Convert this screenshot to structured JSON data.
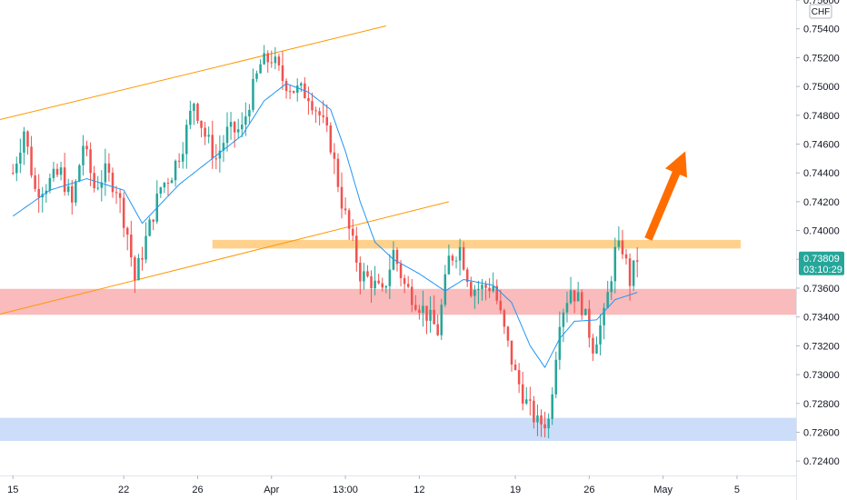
{
  "currency_label": "CHF",
  "price_badge": {
    "price": "0.73809",
    "countdown": "03:10:29",
    "color": "#26a69a"
  },
  "colors": {
    "bull": "#26a69a",
    "bear": "#ef5350",
    "ma": "#2196f3",
    "channel": "#ff9800",
    "resistance_zone": "#ffcc80",
    "support_zone_red": "#f8b4b4",
    "support_zone_blue": "#c5d9f7",
    "arrow": "#ff6d00"
  },
  "chart_data": {
    "type": "candlestick",
    "title": "",
    "ylim": [
      0.723,
      0.756
    ],
    "y_ticks": [
      {
        "value": 0.756,
        "label": "0.75600"
      },
      {
        "value": 0.754,
        "label": "0.75400"
      },
      {
        "value": 0.752,
        "label": "0.75200"
      },
      {
        "value": 0.75,
        "label": "0.75000"
      },
      {
        "value": 0.748,
        "label": "0.74800"
      },
      {
        "value": 0.746,
        "label": "0.74600"
      },
      {
        "value": 0.744,
        "label": "0.74400"
      },
      {
        "value": 0.742,
        "label": "0.74200"
      },
      {
        "value": 0.74,
        "label": "0.74000"
      },
      {
        "value": 0.738,
        "label": "0.73800"
      },
      {
        "value": 0.736,
        "label": "0.73600"
      },
      {
        "value": 0.734,
        "label": "0.73400"
      },
      {
        "value": 0.732,
        "label": "0.73200"
      },
      {
        "value": 0.73,
        "label": "0.73000"
      },
      {
        "value": 0.728,
        "label": "0.72800"
      },
      {
        "value": 0.726,
        "label": "0.72600"
      },
      {
        "value": 0.724,
        "label": "0.72400"
      }
    ],
    "x_ticks": [
      {
        "bar": 0,
        "label": "15"
      },
      {
        "bar": 30,
        "label": "22"
      },
      {
        "bar": 50,
        "label": "26"
      },
      {
        "bar": 70,
        "label": "Apr"
      },
      {
        "bar": 90,
        "label": "13:00"
      },
      {
        "bar": 110,
        "label": "12"
      },
      {
        "bar": 136,
        "label": "19"
      },
      {
        "bar": 156,
        "label": "26"
      },
      {
        "bar": 176,
        "label": "May"
      },
      {
        "bar": 196,
        "label": "5"
      }
    ],
    "x_range": [
      -3.5,
      212
    ],
    "anchors": [
      [
        0,
        0.744
      ],
      [
        3,
        0.747
      ],
      [
        6,
        0.7428
      ],
      [
        9,
        0.7432
      ],
      [
        13,
        0.744
      ],
      [
        16,
        0.7418
      ],
      [
        19,
        0.746
      ],
      [
        22,
        0.743
      ],
      [
        25,
        0.744
      ],
      [
        28,
        0.743
      ],
      [
        31,
        0.7398
      ],
      [
        33,
        0.7366
      ],
      [
        36,
        0.7394
      ],
      [
        40,
        0.743
      ],
      [
        43,
        0.744
      ],
      [
        46,
        0.746
      ],
      [
        49,
        0.749
      ],
      [
        52,
        0.7466
      ],
      [
        55,
        0.745
      ],
      [
        58,
        0.7468
      ],
      [
        62,
        0.747
      ],
      [
        64,
        0.749
      ],
      [
        67,
        0.7515
      ],
      [
        70,
        0.752
      ],
      [
        73,
        0.7505
      ],
      [
        76,
        0.7498
      ],
      [
        80,
        0.7495
      ],
      [
        83,
        0.748
      ],
      [
        86,
        0.746
      ],
      [
        89,
        0.742
      ],
      [
        91,
        0.74
      ],
      [
        94,
        0.737
      ],
      [
        97,
        0.7365
      ],
      [
        100,
        0.7355
      ],
      [
        103,
        0.7385
      ],
      [
        106,
        0.7362
      ],
      [
        109,
        0.7352
      ],
      [
        112,
        0.7342
      ],
      [
        115,
        0.733
      ],
      [
        118,
        0.738
      ],
      [
        121,
        0.7388
      ],
      [
        124,
        0.736
      ],
      [
        127,
        0.736
      ],
      [
        130,
        0.7362
      ],
      [
        133,
        0.733
      ],
      [
        136,
        0.73
      ],
      [
        139,
        0.728
      ],
      [
        142,
        0.7266
      ],
      [
        145,
        0.7268
      ],
      [
        148,
        0.734
      ],
      [
        151,
        0.736
      ],
      [
        154,
        0.7348
      ],
      [
        157,
        0.732
      ],
      [
        160,
        0.734
      ],
      [
        163,
        0.7385
      ],
      [
        165,
        0.7388
      ],
      [
        167,
        0.7365
      ],
      [
        169,
        0.7381
      ]
    ],
    "ma_anchors": [
      [
        0,
        0.741
      ],
      [
        10,
        0.7428
      ],
      [
        20,
        0.7436
      ],
      [
        30,
        0.7428
      ],
      [
        35,
        0.7405
      ],
      [
        45,
        0.7432
      ],
      [
        55,
        0.7452
      ],
      [
        62,
        0.7466
      ],
      [
        68,
        0.749
      ],
      [
        74,
        0.7502
      ],
      [
        80,
        0.7496
      ],
      [
        86,
        0.7484
      ],
      [
        90,
        0.7455
      ],
      [
        94,
        0.742
      ],
      [
        98,
        0.7392
      ],
      [
        103,
        0.738
      ],
      [
        110,
        0.737
      ],
      [
        117,
        0.7358
      ],
      [
        122,
        0.7366
      ],
      [
        130,
        0.7362
      ],
      [
        135,
        0.735
      ],
      [
        140,
        0.732
      ],
      [
        144,
        0.7305
      ],
      [
        148,
        0.7325
      ],
      [
        152,
        0.7337
      ],
      [
        158,
        0.7338
      ],
      [
        163,
        0.7352
      ],
      [
        169,
        0.7357
      ]
    ],
    "zones": [
      {
        "name": "resistance",
        "y_low": 0.73875,
        "y_high": 0.73935,
        "bar_from": 54,
        "bar_to": 197
      },
      {
        "name": "support-red",
        "y_low": 0.73415,
        "y_high": 0.73595,
        "bar_from": -3.5,
        "bar_to": 212
      },
      {
        "name": "support-blue",
        "y_low": 0.7254,
        "y_high": 0.727,
        "bar_from": -3.5,
        "bar_to": 212
      }
    ],
    "trendlines": [
      {
        "name": "channel-upper",
        "from": [
          -3.5,
          0.7477
        ],
        "to": [
          101,
          0.7542
        ]
      },
      {
        "name": "channel-lower",
        "from": [
          -3.5,
          0.7342
        ],
        "to": [
          118,
          0.742
        ]
      }
    ],
    "arrow": {
      "from": [
        172,
        0.7394
      ],
      "to": [
        182,
        0.7455
      ]
    }
  }
}
